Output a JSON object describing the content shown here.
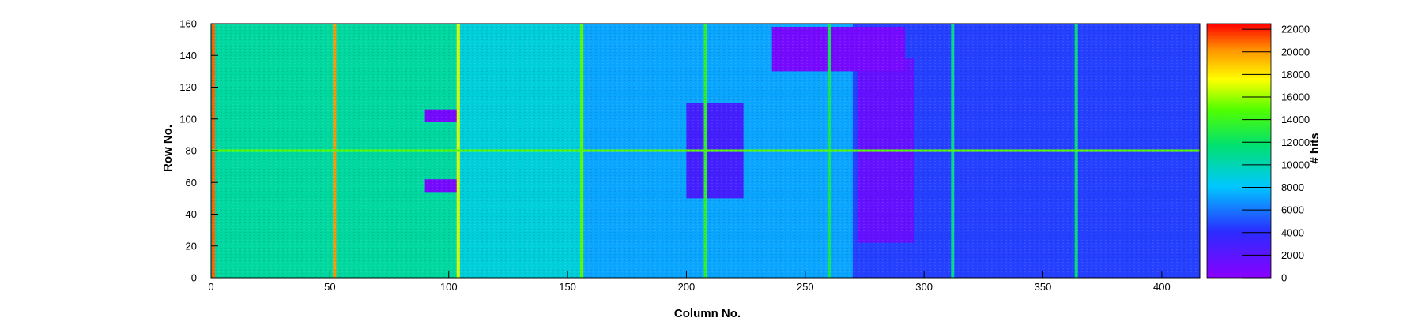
{
  "chart_data": {
    "type": "heatmap",
    "title": "",
    "xlabel": "Column No.",
    "ylabel": "Row No.",
    "zlabel": "# hits",
    "xlim": [
      0,
      416
    ],
    "ylim": [
      0,
      160
    ],
    "zlim": [
      0,
      22500
    ],
    "x_ticks": [
      0,
      50,
      100,
      150,
      200,
      250,
      300,
      350,
      400
    ],
    "y_ticks": [
      0,
      20,
      40,
      60,
      80,
      100,
      120,
      140,
      160
    ],
    "z_ticks": [
      0,
      2000,
      4000,
      6000,
      8000,
      10000,
      12000,
      14000,
      16000,
      18000,
      20000,
      22000
    ],
    "grid": false,
    "colorbar": "right",
    "regions": [
      {
        "x": [
          0,
          104
        ],
        "y": [
          0,
          160
        ],
        "value": 10500
      },
      {
        "x": [
          104,
          156
        ],
        "y": [
          0,
          160
        ],
        "value": 9000
      },
      {
        "x": [
          156,
          270
        ],
        "y": [
          0,
          160
        ],
        "value": 7200
      },
      {
        "x": [
          270,
          416
        ],
        "y": [
          0,
          160
        ],
        "value": 4600
      },
      {
        "x": [
          272,
          296
        ],
        "y": [
          22,
          138
        ],
        "value": 1600
      }
    ],
    "stripes": [
      {
        "axis": "column",
        "at": 1,
        "value": 21000
      },
      {
        "axis": "column",
        "at": 52,
        "value": 20000
      },
      {
        "axis": "column",
        "at": 104,
        "value": 17000
      },
      {
        "axis": "column",
        "at": 156,
        "value": 15000
      },
      {
        "axis": "column",
        "at": 208,
        "value": 13500
      },
      {
        "axis": "column",
        "at": 260,
        "value": 12500
      },
      {
        "axis": "column",
        "at": 312,
        "value": 11000
      },
      {
        "axis": "column",
        "at": 364,
        "value": 11500
      },
      {
        "axis": "row",
        "at": 80,
        "value": 15000
      }
    ],
    "blocks": [
      {
        "x": [
          236,
          292
        ],
        "y": [
          130,
          158
        ],
        "value": 900
      },
      {
        "x": [
          200,
          224
        ],
        "y": [
          50,
          110
        ],
        "value": 3000
      },
      {
        "x": [
          90,
          104
        ],
        "y": [
          54,
          62
        ],
        "value": 900
      },
      {
        "x": [
          90,
          104
        ],
        "y": [
          98,
          106
        ],
        "value": 900
      }
    ]
  }
}
